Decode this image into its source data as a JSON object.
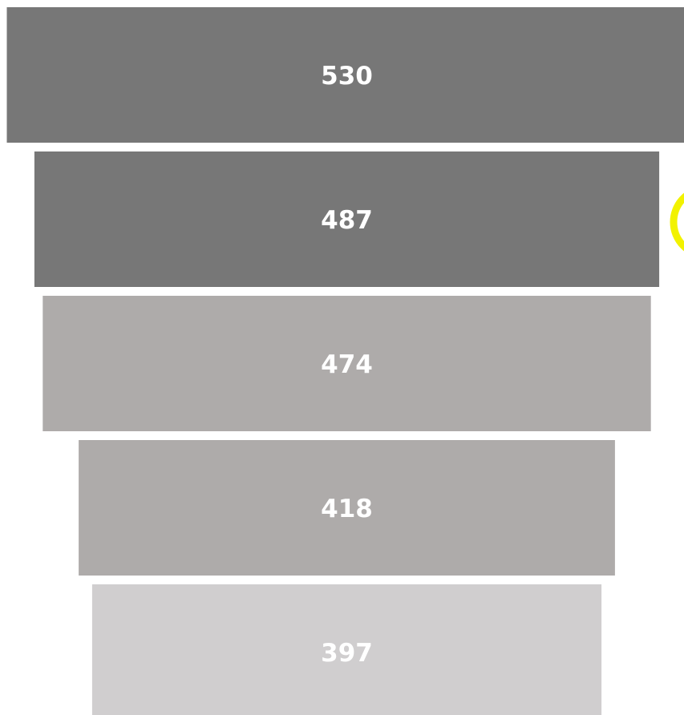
{
  "chart_data": {
    "type": "funnel",
    "values": [
      530,
      487,
      474,
      418,
      397
    ],
    "colors": [
      "#777777",
      "#777777",
      "#aeabaa",
      "#aeabaa",
      "#d0cecf"
    ]
  }
}
